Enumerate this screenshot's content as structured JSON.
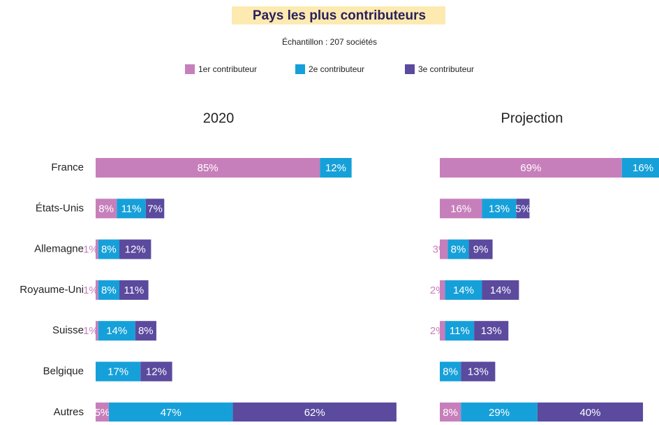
{
  "title": "Pays les plus contributeurs",
  "subtitle": "Échantillon : 207 sociétés",
  "chart_data": [
    {
      "type": "bar",
      "title": "2020",
      "categories": [
        "France",
        "États-Unis",
        "Allemagne",
        "Royaume-Uni",
        "Suisse",
        "Belgique",
        "Autres"
      ],
      "series": [
        {
          "name": "1er contributeur",
          "color": "#c77fbb",
          "values": [
            85,
            8,
            1,
            1,
            1,
            null,
            5
          ],
          "value_labels": [
            "85%",
            "8%",
            "1%",
            "1%",
            "1%",
            null,
            "5%"
          ]
        },
        {
          "name": "2e contributeur",
          "color": "#16a0d9",
          "values": [
            12,
            11,
            8,
            8,
            14,
            17,
            47
          ],
          "value_labels": [
            "12%",
            "11%",
            "8%",
            "8%",
            "14%",
            "17%",
            "47%"
          ]
        },
        {
          "name": "3e contributeur",
          "color": "#5b4a9e",
          "values": [
            null,
            7,
            12,
            11,
            8,
            12,
            62
          ],
          "value_labels": [
            null,
            "7%",
            "12%",
            "11%",
            "8%",
            "12%",
            "62%"
          ]
        }
      ]
    },
    {
      "type": "bar",
      "title": "Projection",
      "series": [
        {
          "color": "#c77fbb",
          "values": [
            69,
            16,
            3,
            2,
            2,
            null,
            8
          ],
          "value_labels": [
            "69%",
            "16%",
            "3%",
            "2%",
            "2%",
            null,
            "8%"
          ]
        },
        {
          "color": "#16a0d9",
          "values": [
            16,
            13,
            8,
            14,
            11,
            8,
            29
          ],
          "value_labels": [
            "16%",
            "13%",
            "8%",
            "14%",
            "11%",
            "8%",
            "29%"
          ]
        },
        {
          "color": "#5b4a9e",
          "values": [
            null,
            5,
            9,
            14,
            13,
            13,
            40
          ],
          "value_labels": [
            null,
            "5%",
            "9%",
            "14%",
            "13%",
            "13%",
            "40%"
          ]
        }
      ]
    }
  ]
}
